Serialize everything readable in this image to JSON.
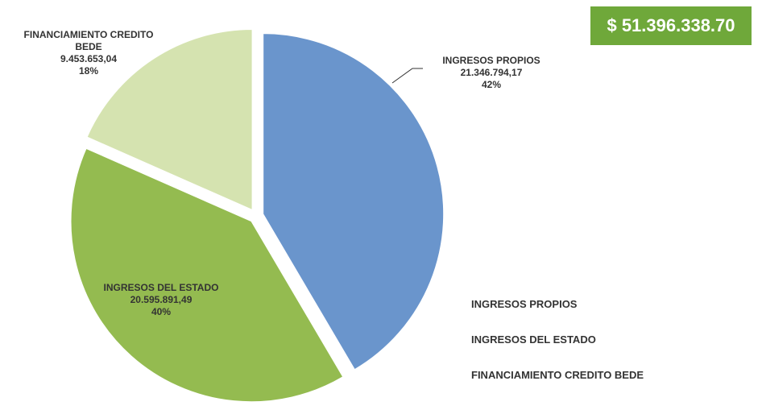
{
  "chart_data": {
    "type": "pie",
    "total": "$ 51.396.338.70",
    "categories": [
      "INGRESOS PROPIOS",
      "INGRESOS DEL ESTADO",
      "FINANCIAMIENTO CREDITO BEDE"
    ],
    "values": [
      21346794.17,
      20595891.49,
      9453653.04
    ],
    "value_labels": [
      "21.346.794,17",
      "20.595.891,49",
      "9.453.653,04"
    ],
    "percents": [
      42,
      40,
      18
    ],
    "percent_labels": [
      "42%",
      "40%",
      "18%"
    ],
    "colors": [
      "#6a95cc",
      "#94bb50",
      "#d5e3b0"
    ],
    "legend": "right"
  }
}
